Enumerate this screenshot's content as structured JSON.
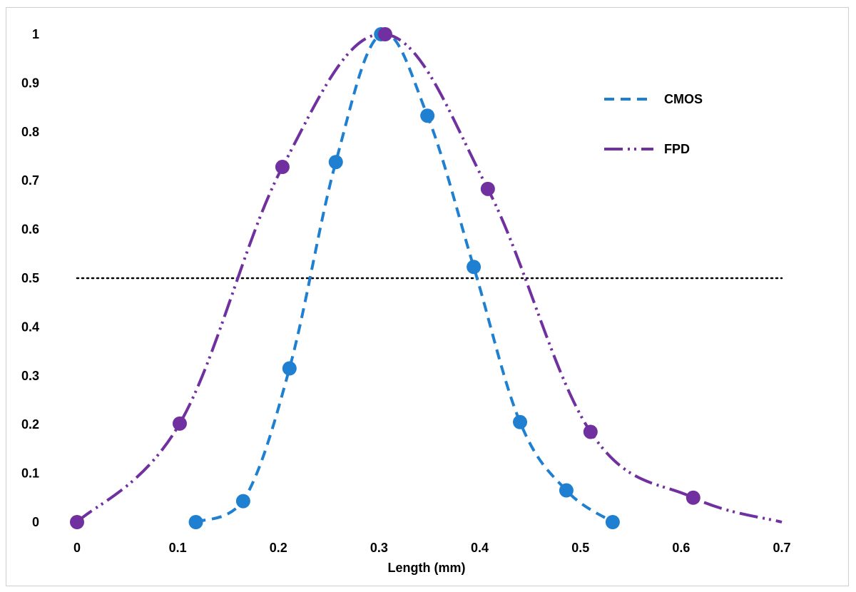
{
  "chart_data": {
    "type": "line",
    "title": "",
    "xlabel": "Length (mm)",
    "ylabel": "",
    "xlim": [
      0,
      0.7
    ],
    "ylim": [
      0,
      1
    ],
    "x_ticks": [
      "0",
      "0.1",
      "0.2",
      "0.3",
      "0.4",
      "0.5",
      "0.6",
      "0.7"
    ],
    "y_ticks": [
      "0",
      "0.1",
      "0.2",
      "0.3",
      "0.4",
      "0.5",
      "0.6",
      "0.7",
      "0.8",
      "0.9",
      "1"
    ],
    "grid": false,
    "legend_position": "top-right",
    "reference_line": {
      "y": 0.5,
      "style": "dotted",
      "color": "#000000"
    },
    "series": [
      {
        "name": "CMOS",
        "color": "#1f7fd0",
        "line_style": "dashed",
        "points": [
          [
            0.118,
            0.0
          ],
          [
            0.165,
            0.043
          ],
          [
            0.211,
            0.315
          ],
          [
            0.257,
            0.738
          ],
          [
            0.302,
            1.0
          ],
          [
            0.348,
            0.833
          ],
          [
            0.394,
            0.523
          ],
          [
            0.44,
            0.205
          ],
          [
            0.486,
            0.065
          ],
          [
            0.532,
            0.0
          ]
        ]
      },
      {
        "name": "FPD",
        "color": "#7030a0",
        "line_style": "dash-dot-dot",
        "points": [
          [
            0.0,
            0.0
          ],
          [
            0.102,
            0.202
          ],
          [
            0.204,
            0.728
          ],
          [
            0.306,
            1.0
          ],
          [
            0.408,
            0.683
          ],
          [
            0.51,
            0.185
          ],
          [
            0.612,
            0.05
          ],
          [
            0.7,
            0.0
          ]
        ],
        "marker_count": 7
      }
    ]
  }
}
